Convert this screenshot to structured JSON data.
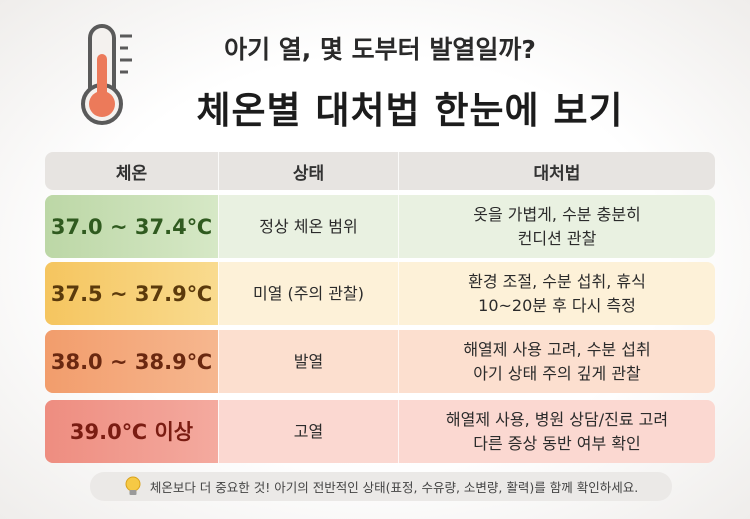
{
  "header": {
    "subtitle": "아기 열, 몇 도부터 발열일까?",
    "title": "체온별 대처법 한눈에 보기"
  },
  "table": {
    "headers": [
      "체온",
      "상태",
      "대처법"
    ],
    "rows": [
      [
        "37.0 ~ 37.4℃",
        "정상 체온 범위",
        [
          "옷을 가볍게, 수분 충분히",
          "컨디션 관찰"
        ]
      ],
      [
        "37.5 ~ 37.9℃",
        "미열 (주의 관찰)",
        [
          "환경 조절, 수분 섭취, 휴식",
          "10~20분 후 다시 측정"
        ]
      ],
      [
        "38.0 ~ 38.9℃",
        "발열",
        [
          "해열제 사용 고려, 수분 섭취",
          "아기 상태 주의 깊게 관찰"
        ]
      ],
      [
        "39.0℃  이상",
        "고열",
        [
          "해열제 사용, 병원 상담/진료 고려",
          "다른 증상 동반 여부 확인"
        ]
      ]
    ]
  },
  "note": "체온보다 더 중요한 것! 아기의 전반적인 상태(표정, 수유량, 소변량, 활력)를 함께 확인하세요."
}
